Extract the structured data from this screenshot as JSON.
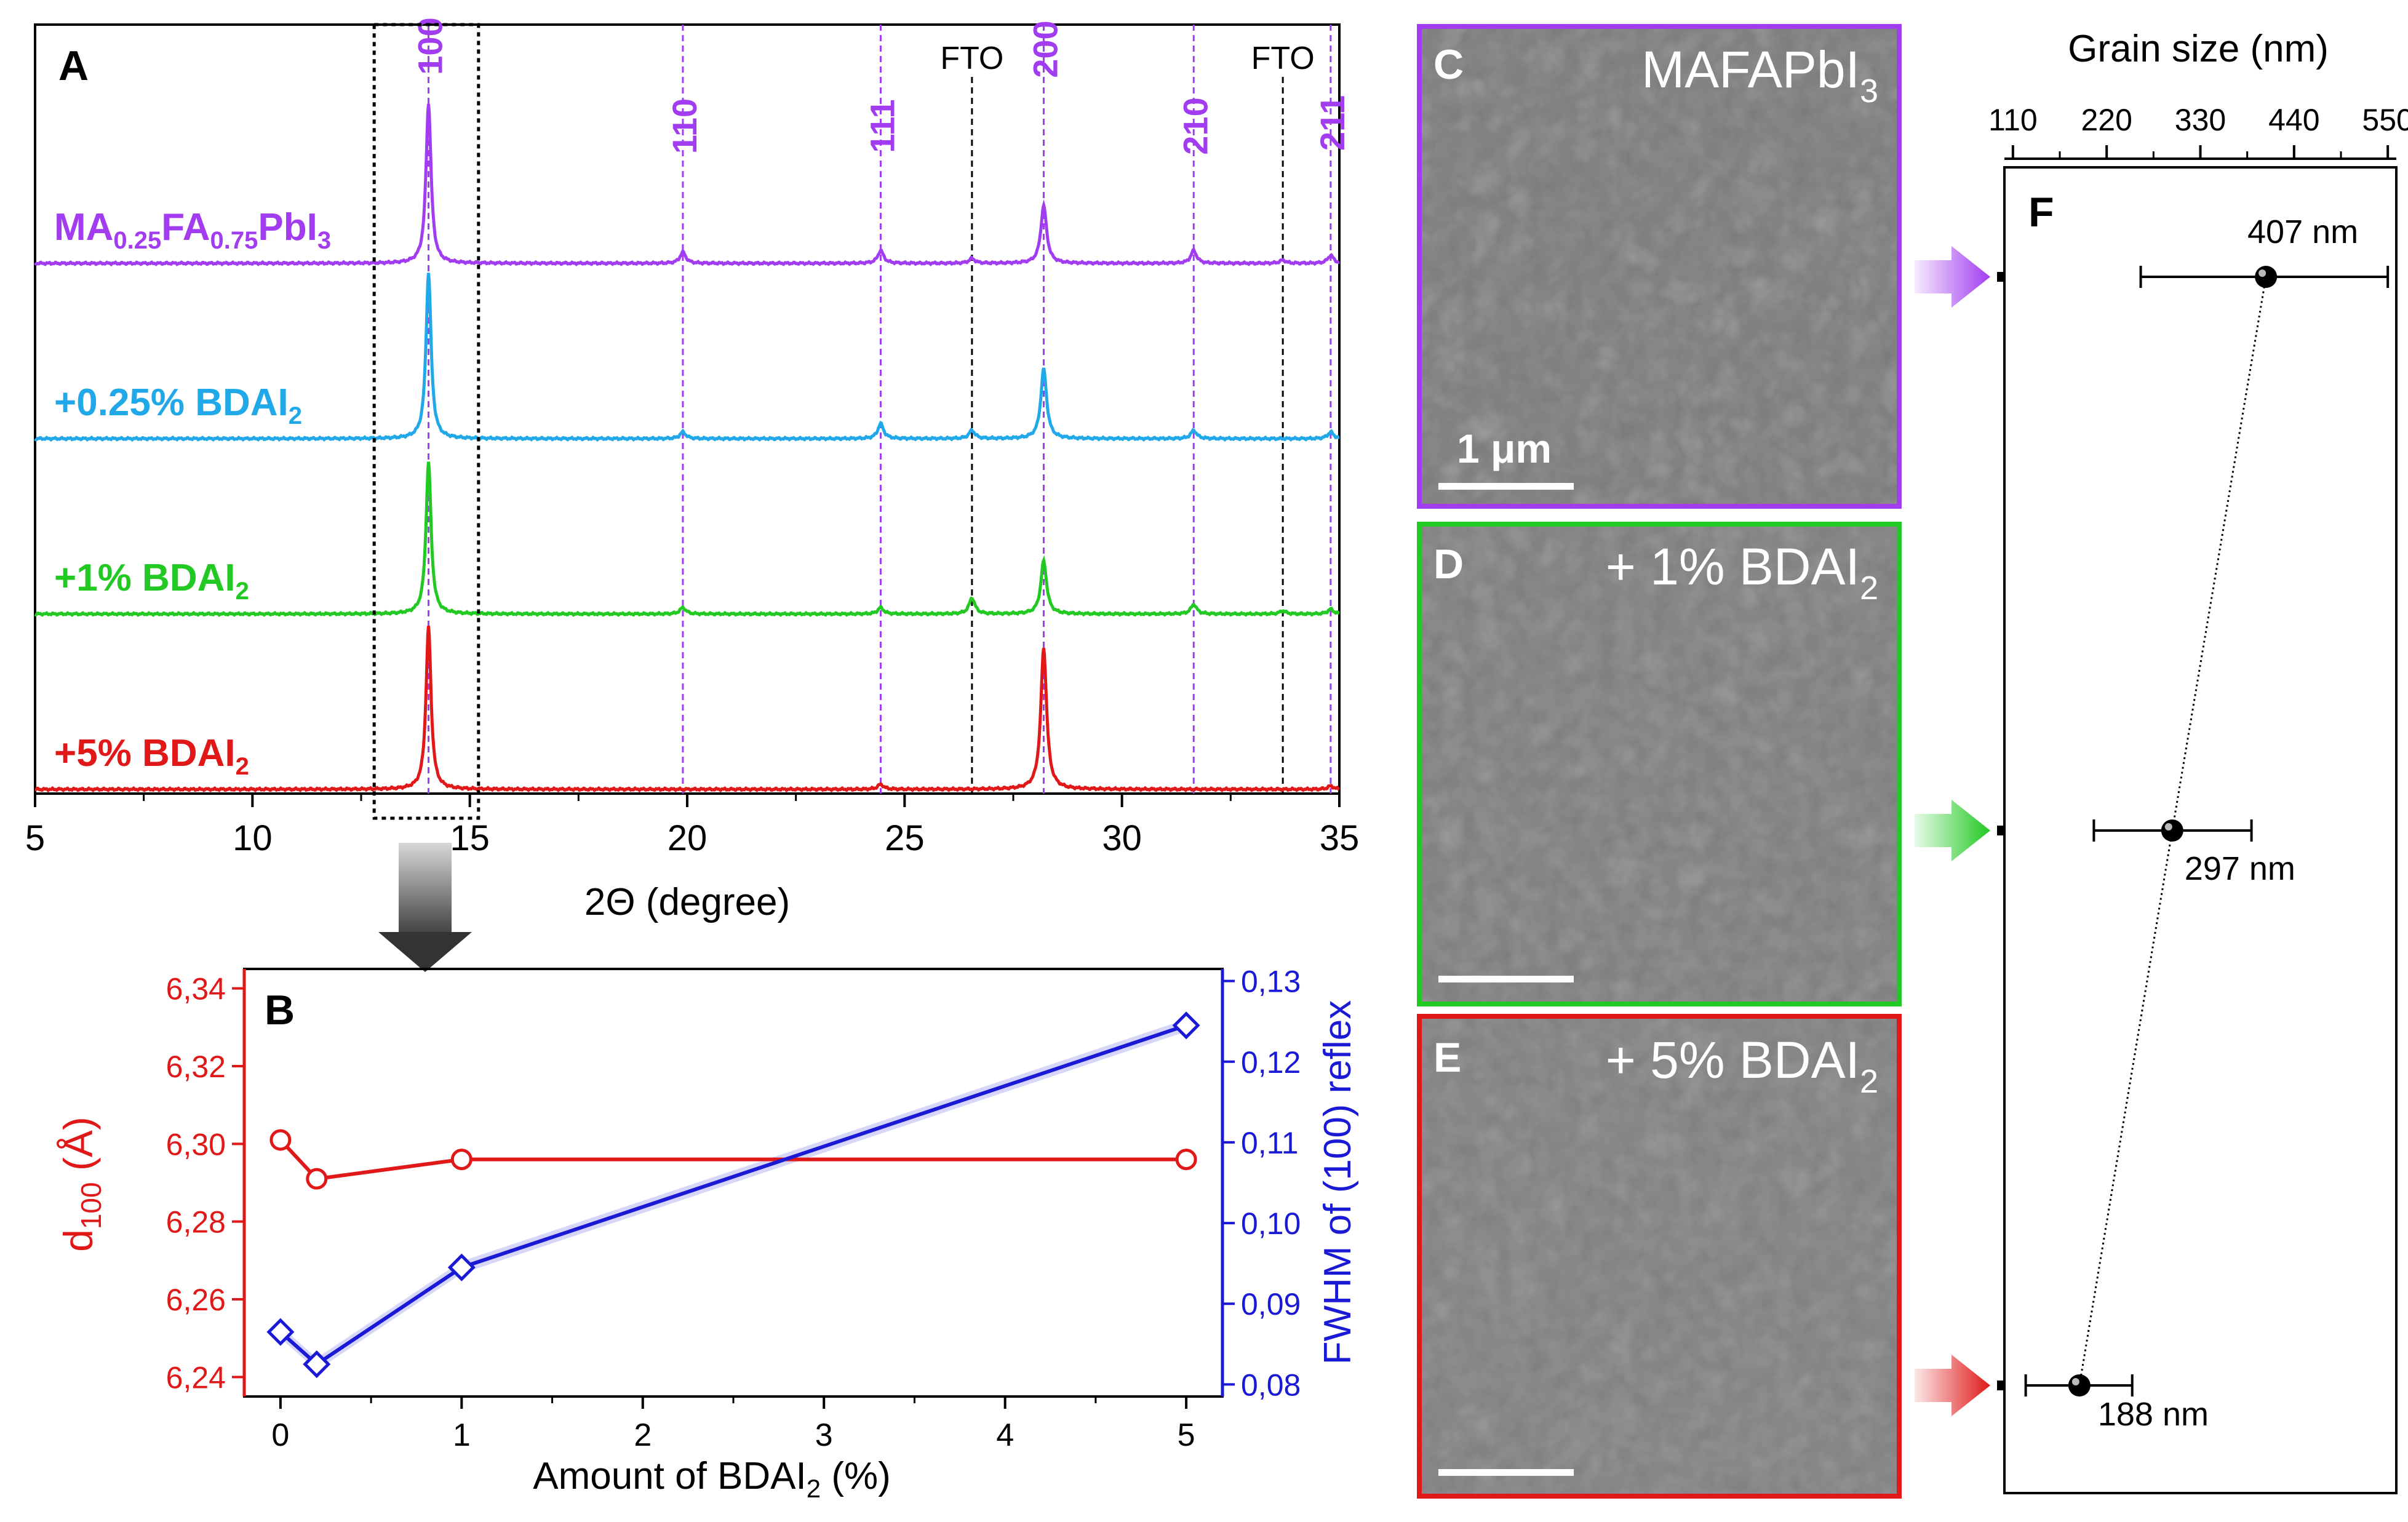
{
  "colors": {
    "purple": "#a23cf0",
    "blue": "#20a8e8",
    "green": "#22c922",
    "red": "#e01818",
    "navy": "#1a1ad6",
    "black": "#000000"
  },
  "panels": {
    "A": "A",
    "B": "B",
    "C": "C",
    "D": "D",
    "E": "E",
    "F": "F"
  },
  "chart_data": [
    {
      "id": "A",
      "type": "line",
      "title": "",
      "xlabel": "2Θ (degree)",
      "ylabel": "",
      "xlim": [
        5,
        35
      ],
      "xticks": [
        "5",
        "10",
        "15",
        "20",
        "25",
        "30",
        "35"
      ],
      "series_labels": [
        {
          "base": "MA",
          "sub1": "0.25",
          "mid": "FA",
          "sub2": "0.75",
          "end": "PbI",
          "sub3": "3"
        },
        {
          "text": "+0.25% BDAI",
          "sub": "2"
        },
        {
          "text": "+1% BDAI",
          "sub": "2"
        },
        {
          "text": "+5% BDAI",
          "sub": "2"
        }
      ],
      "series": [
        {
          "name": "MA0.25FA0.75PbI3",
          "color": "#a23cf0",
          "peaks": [
            [
              14.05,
              1.0
            ],
            [
              19.9,
              0.07
            ],
            [
              24.45,
              0.08
            ],
            [
              26.55,
              0.03
            ],
            [
              28.2,
              0.36
            ],
            [
              31.65,
              0.08
            ],
            [
              33.7,
              0.02
            ],
            [
              34.8,
              0.05
            ]
          ]
        },
        {
          "name": "+0.25% BDAI2",
          "color": "#20a8e8",
          "peaks": [
            [
              14.05,
              1.0
            ],
            [
              19.9,
              0.04
            ],
            [
              24.45,
              0.09
            ],
            [
              26.55,
              0.05
            ],
            [
              28.2,
              0.42
            ],
            [
              31.65,
              0.05
            ],
            [
              34.8,
              0.04
            ]
          ]
        },
        {
          "name": "+1% BDAI2",
          "color": "#22c922",
          "peaks": [
            [
              14.05,
              0.95
            ],
            [
              19.9,
              0.04
            ],
            [
              24.45,
              0.04
            ],
            [
              26.55,
              0.1
            ],
            [
              28.2,
              0.33
            ],
            [
              31.65,
              0.06
            ],
            [
              33.7,
              0.02
            ],
            [
              34.8,
              0.03
            ]
          ]
        },
        {
          "name": "+5% BDAI2",
          "color": "#e01818",
          "peaks": [
            [
              14.05,
              0.98
            ],
            [
              24.45,
              0.03
            ],
            [
              28.2,
              0.85
            ],
            [
              34.8,
              0.02
            ]
          ]
        }
      ],
      "reflections": [
        {
          "label": "100",
          "x": 14.05
        },
        {
          "label": "110",
          "x": 19.9
        },
        {
          "label": "111",
          "x": 24.45
        },
        {
          "label": "200",
          "x": 28.2
        },
        {
          "label": "210",
          "x": 31.65
        },
        {
          "label": "211",
          "x": 34.8
        }
      ],
      "fto_lines": [
        {
          "label": "FTO",
          "x": 26.55
        },
        {
          "label": "FTO",
          "x": 33.7
        }
      ],
      "zoom_box_x": [
        12.8,
        15.2
      ]
    },
    {
      "id": "B",
      "type": "line",
      "xlabel_base": "Amount of BDAI",
      "xlabel_sub": "2",
      "xlabel_end": " (%)",
      "ylabel_left_base": "d",
      "ylabel_left_sub": "100",
      "ylabel_left_end": " (Å)",
      "ylabel_right": "FWHM of (100) reflex",
      "xlim": [
        -0.2,
        5.2
      ],
      "xticks": [
        "0",
        "1",
        "2",
        "3",
        "4",
        "5"
      ],
      "ylim_left": [
        6.235,
        6.345
      ],
      "yticks_left": [
        "6,24",
        "6,26",
        "6,28",
        "6,30",
        "6,32",
        "6,34"
      ],
      "ylim_right": [
        0.0785,
        0.1315
      ],
      "yticks_right": [
        "0,08",
        "0,09",
        "0,10",
        "0,11",
        "0,12",
        "0,13"
      ],
      "series": [
        {
          "name": "d100",
          "axis": "left",
          "color": "#e01818",
          "marker": "circle",
          "x": [
            0,
            0.2,
            1,
            5
          ],
          "y": [
            6.301,
            6.291,
            6.296,
            6.296
          ]
        },
        {
          "name": "FWHM",
          "axis": "right",
          "color": "#1a1ad6",
          "marker": "diamond",
          "x": [
            0,
            0.2,
            1,
            5
          ],
          "y": [
            0.0865,
            0.0825,
            0.0945,
            0.1245
          ]
        }
      ]
    },
    {
      "id": "F",
      "type": "scatter",
      "xlabel": "Grain size (nm)",
      "xlim": [
        100,
        560
      ],
      "xticks": [
        "110",
        "220",
        "330",
        "440",
        "550"
      ],
      "points": [
        {
          "label": "407 nm",
          "value": 407,
          "err_lo": 260,
          "err_hi": 550,
          "color": "#a23cf0"
        },
        {
          "label": "297 nm",
          "value": 297,
          "err_lo": 205,
          "err_hi": 390,
          "color": "#22c922"
        },
        {
          "label": "188 nm",
          "value": 188,
          "err_lo": 125,
          "err_hi": 250,
          "color": "#e01818"
        }
      ]
    }
  ],
  "sem": {
    "C": {
      "text": "MAFAPbI",
      "sub": "3",
      "scalebar": "1 μm",
      "color": "#a23cf0"
    },
    "D": {
      "text": "+ 1% BDAI",
      "sub": "2",
      "color": "#22c922"
    },
    "E": {
      "text": "+ 5% BDAI",
      "sub": "2",
      "color": "#e01818"
    }
  }
}
